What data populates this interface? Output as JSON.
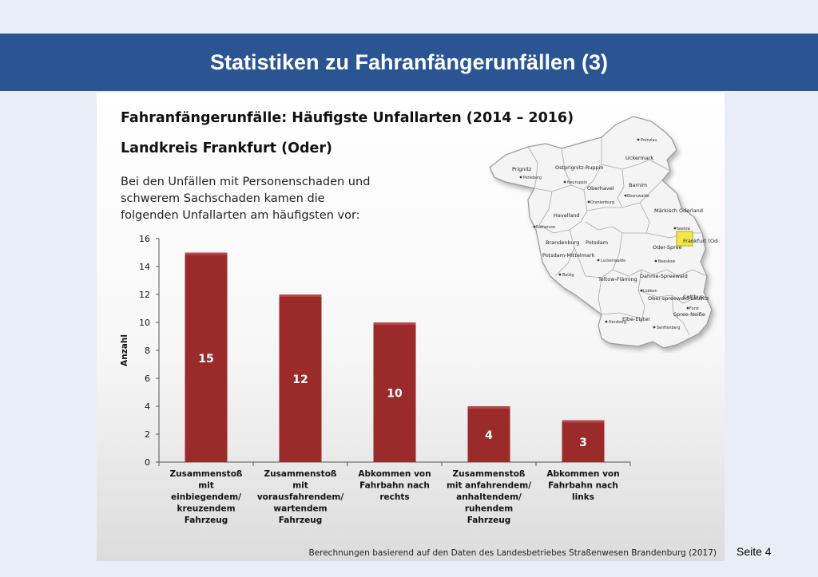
{
  "slide": {
    "title": "Statistiken zu Fahranfängerunfällen (3)",
    "page_label": "Seite 4"
  },
  "panel": {
    "heading": "Fahranfängerunfälle: Häufigste Unfallarten (2014 – 2016)",
    "subheading": "Landkreis Frankfurt (Oder)",
    "intro": "Bei den Unfällen mit Personenschaden und schwerem Sachschaden kamen die folgenden Unfallarten am häufigsten vor:",
    "source": "Berechnungen basierend auf den Daten des Landesbetriebes Straßenwesen Brandenburg (2017)"
  },
  "map": {
    "highlight_color": "#f2e64a",
    "regions": [
      "Prignitz",
      "Ostprignitz-Ruppin",
      "Uckermark",
      "Oberhavel",
      "Barnim",
      "Havelland",
      "Märkisch Oderland",
      "Brandenburg",
      "Potsdam",
      "Frankfurt (Oder)",
      "Potsdam-Mittelmark",
      "Oder-Spree",
      "Teltow-Fläming",
      "Dahme-Spreewald",
      "Ober-spreewald-Lausitz",
      "Cottbus",
      "Spree-Neiße",
      "Elbe-Elster"
    ],
    "towns": [
      "Prenzlau",
      "Perleberg",
      "Neuruppin",
      "Eberswalde",
      "Oranienburg",
      "Rathenow",
      "Seelow",
      "Beeskow",
      "Luckenwalde",
      "Belzig",
      "Lübben",
      "Forst",
      "Senftenberg",
      "Herzberg"
    ]
  },
  "chart_data": {
    "type": "bar",
    "title": "",
    "xlabel": "",
    "ylabel": "Anzahl",
    "ylim": [
      0,
      16
    ],
    "yticks": [
      0,
      2,
      4,
      6,
      8,
      10,
      12,
      14,
      16
    ],
    "grid": false,
    "bar_color": "#9b2b2b",
    "categories": [
      [
        "Zusammenstoß",
        "mit",
        "einbiegendem/",
        "kreuzendem",
        "Fahrzeug"
      ],
      [
        "Zusammenstoß",
        "mit",
        "vorausfahrendem/",
        "wartendem",
        "Fahrzeug"
      ],
      [
        "Abkommen von",
        "Fahrbahn nach",
        "rechts"
      ],
      [
        "Zusammenstoß",
        "mit anfahrendem/",
        "anhaltendem/",
        "ruhendem",
        "Fahrzeug"
      ],
      [
        "Abkommen von",
        "Fahrbahn nach",
        "links"
      ]
    ],
    "values": [
      15,
      12,
      10,
      4,
      3
    ]
  }
}
